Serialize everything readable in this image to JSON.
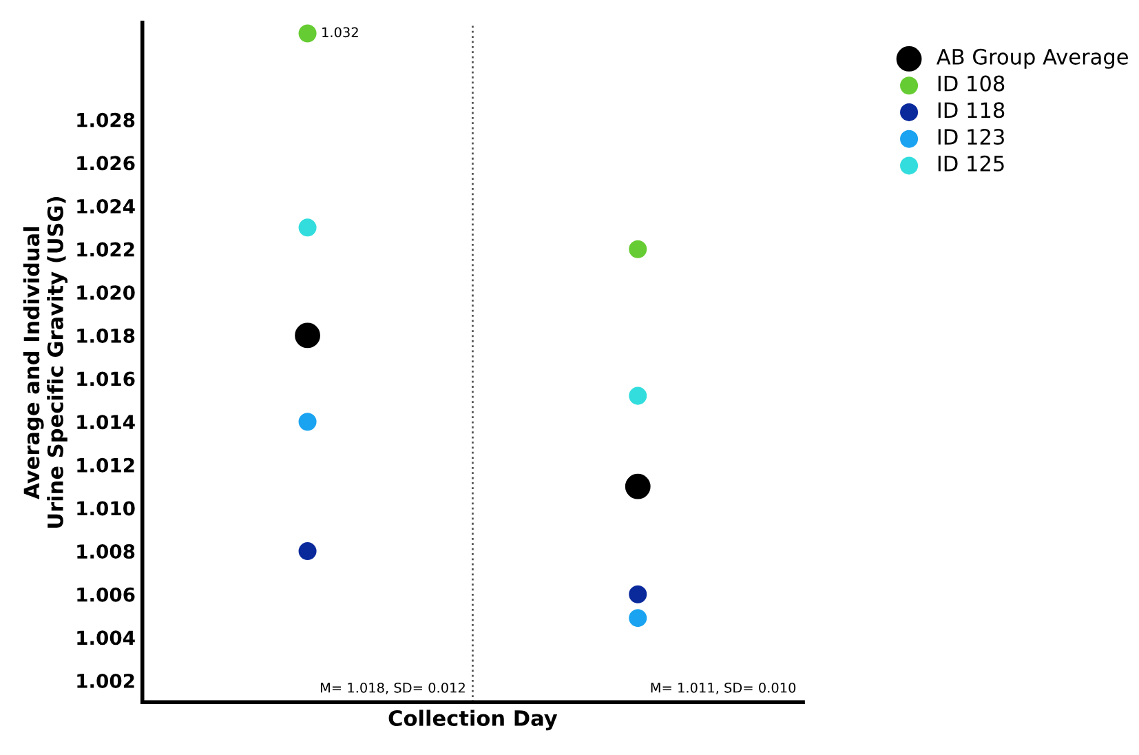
{
  "chart_data": {
    "type": "scatter",
    "xlabel": "Collection Day",
    "ylabel": "Average and Individual\nUrine Specific Gravity (USG)",
    "categories": [
      null,
      null
    ],
    "series": [
      {
        "name": "AB Group Average",
        "color": "#000000",
        "values": [
          1.018,
          1.011
        ]
      },
      {
        "name": "ID 108",
        "color": "#66cc33",
        "values": [
          1.032,
          1.022
        ],
        "value_labels": [
          "1.032",
          null
        ]
      },
      {
        "name": "ID 118",
        "color": "#0a2a9c",
        "values": [
          1.008,
          1.006
        ]
      },
      {
        "name": "ID 123",
        "color": "#1aa3f0",
        "values": [
          1.014,
          1.0049
        ]
      },
      {
        "name": "ID 125",
        "color": "#33dddd",
        "values": [
          1.023,
          1.0152
        ]
      }
    ],
    "ylim": [
      1.001,
      1.0325
    ],
    "yticks": [
      1.002,
      1.004,
      1.006,
      1.008,
      {
        "value": 1.01,
        "label": "1.010"
      },
      1.012,
      1.014,
      1.016,
      1.018,
      {
        "value": 1.02,
        "label": "1.020"
      },
      1.022,
      1.024,
      1.026,
      1.028
    ],
    "annotations": [
      "M= 1.018, SD= 0.012",
      "M= 1.011, SD= 0.010"
    ],
    "marker": "circle",
    "grid": false,
    "legend": "top right",
    "tick_labels": "y"
  }
}
